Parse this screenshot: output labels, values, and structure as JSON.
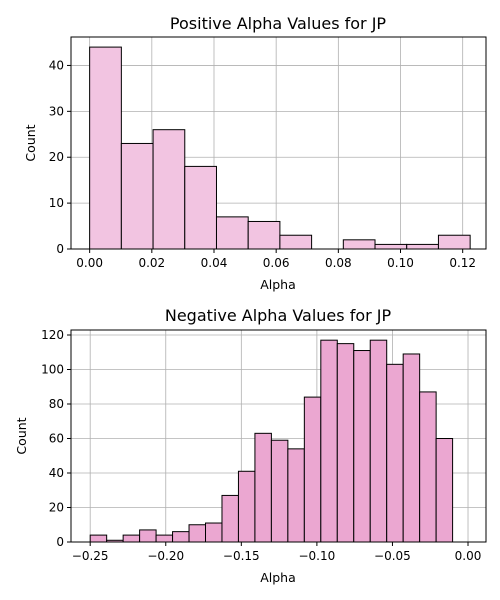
{
  "chart_data": [
    {
      "type": "bar",
      "title": "Positive Alpha Values for JP",
      "xlabel": "Alpha",
      "ylabel": "Count",
      "xlim": [
        -0.006,
        0.1275
      ],
      "ylim": [
        0,
        46.2
      ],
      "grid": true,
      "bar_color": "#f2c4e1",
      "edge_color": "#000000",
      "xticks": [
        0.0,
        0.02,
        0.04,
        0.06,
        0.08,
        0.1,
        0.12
      ],
      "xtick_labels": [
        "0.00",
        "0.02",
        "0.04",
        "0.06",
        "0.08",
        "0.10",
        "0.12"
      ],
      "yticks": [
        0,
        10,
        20,
        30,
        40
      ],
      "ytick_labels": [
        "0",
        "10",
        "20",
        "30",
        "40"
      ],
      "bins": [
        {
          "x0": 0.0,
          "x1": 0.0102,
          "value": 44
        },
        {
          "x0": 0.0102,
          "x1": 0.0204,
          "value": 23
        },
        {
          "x0": 0.0204,
          "x1": 0.0306,
          "value": 26
        },
        {
          "x0": 0.0306,
          "x1": 0.0408,
          "value": 18
        },
        {
          "x0": 0.0408,
          "x1": 0.051,
          "value": 7
        },
        {
          "x0": 0.051,
          "x1": 0.0612,
          "value": 6
        },
        {
          "x0": 0.0612,
          "x1": 0.0714,
          "value": 3
        },
        {
          "x0": 0.0714,
          "x1": 0.0816,
          "value": 0
        },
        {
          "x0": 0.0816,
          "x1": 0.0918,
          "value": 2
        },
        {
          "x0": 0.0918,
          "x1": 0.102,
          "value": 1
        },
        {
          "x0": 0.102,
          "x1": 0.1122,
          "value": 1
        },
        {
          "x0": 0.1122,
          "x1": 0.1224,
          "value": 3
        }
      ]
    },
    {
      "type": "bar",
      "title": "Negative Alpha Values for JP",
      "xlabel": "Alpha",
      "ylabel": "Count",
      "xlim": [
        -0.2627,
        0.0119
      ],
      "ylim": [
        0,
        122.9
      ],
      "grid": true,
      "bar_color": "#eba7d1",
      "edge_color": "#000000",
      "xticks": [
        -0.25,
        -0.2,
        -0.15,
        -0.1,
        -0.05,
        0.0
      ],
      "xtick_labels": [
        "−0.25",
        "−0.20",
        "−0.15",
        "−0.10",
        "−0.05",
        "0.00"
      ],
      "yticks": [
        0,
        20,
        40,
        60,
        80,
        100,
        120
      ],
      "ytick_labels": [
        "0",
        "20",
        "40",
        "60",
        "80",
        "100",
        "120"
      ],
      "bins": [
        {
          "x0": -0.25,
          "x1": -0.2391,
          "value": 4
        },
        {
          "x0": -0.2391,
          "x1": -0.2282,
          "value": 1
        },
        {
          "x0": -0.2282,
          "x1": -0.2173,
          "value": 4
        },
        {
          "x0": -0.2173,
          "x1": -0.2064,
          "value": 7
        },
        {
          "x0": -0.2064,
          "x1": -0.1955,
          "value": 4
        },
        {
          "x0": -0.1955,
          "x1": -0.1846,
          "value": 6
        },
        {
          "x0": -0.1846,
          "x1": -0.1737,
          "value": 10
        },
        {
          "x0": -0.1737,
          "x1": -0.1628,
          "value": 11
        },
        {
          "x0": -0.1628,
          "x1": -0.1519,
          "value": 27
        },
        {
          "x0": -0.1519,
          "x1": -0.141,
          "value": 41
        },
        {
          "x0": -0.141,
          "x1": -0.1301,
          "value": 63
        },
        {
          "x0": -0.1301,
          "x1": -0.1192,
          "value": 59
        },
        {
          "x0": -0.1192,
          "x1": -0.1083,
          "value": 54
        },
        {
          "x0": -0.1083,
          "x1": -0.0974,
          "value": 84
        },
        {
          "x0": -0.0974,
          "x1": -0.0865,
          "value": 117
        },
        {
          "x0": -0.0865,
          "x1": -0.0756,
          "value": 115
        },
        {
          "x0": -0.0756,
          "x1": -0.0647,
          "value": 111
        },
        {
          "x0": -0.0647,
          "x1": -0.0538,
          "value": 117
        },
        {
          "x0": -0.0538,
          "x1": -0.0429,
          "value": 103
        },
        {
          "x0": -0.0429,
          "x1": -0.032,
          "value": 109
        },
        {
          "x0": -0.032,
          "x1": -0.0211,
          "value": 87
        },
        {
          "x0": -0.0211,
          "x1": -0.0102,
          "value": 60
        }
      ]
    }
  ]
}
